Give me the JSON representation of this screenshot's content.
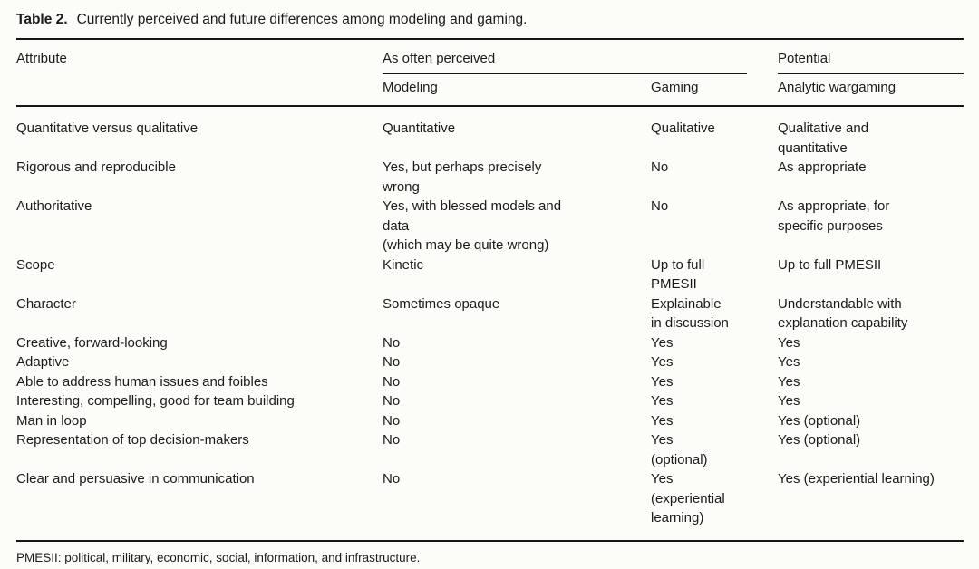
{
  "caption": {
    "label": "Table 2.",
    "text": "Currently perceived and future differences among modeling and gaming."
  },
  "table": {
    "headers": {
      "attribute": "Attribute",
      "group_perceived": "As often perceived",
      "group_potential": "Potential",
      "modeling": "Modeling",
      "gaming": "Gaming",
      "wargaming": "Analytic wargaming"
    },
    "rows": [
      {
        "attribute": "Quantitative versus qualitative",
        "modeling": "Quantitative",
        "gaming": "Qualitative",
        "wargaming": "Qualitative and\nquantitative"
      },
      {
        "attribute": "Rigorous and reproducible",
        "modeling": "Yes, but perhaps precisely\nwrong",
        "gaming": "No",
        "wargaming": "As appropriate"
      },
      {
        "attribute": "Authoritative",
        "modeling": "Yes, with blessed models and\ndata\n(which may be quite wrong)",
        "gaming": "No",
        "wargaming": "As appropriate, for\nspecific purposes"
      },
      {
        "attribute": "Scope",
        "modeling": "Kinetic",
        "gaming": "Up to full\nPMESII",
        "wargaming": "Up to full PMESII"
      },
      {
        "attribute": "Character",
        "modeling": "Sometimes opaque",
        "gaming": "Explainable\nin discussion",
        "wargaming": "Understandable with\nexplanation capability"
      },
      {
        "attribute": "Creative, forward-looking",
        "modeling": "No",
        "gaming": "Yes",
        "wargaming": "Yes"
      },
      {
        "attribute": "Adaptive",
        "modeling": "No",
        "gaming": "Yes",
        "wargaming": "Yes"
      },
      {
        "attribute": "Able to address human issues and foibles",
        "modeling": "No",
        "gaming": "Yes",
        "wargaming": "Yes"
      },
      {
        "attribute": "Interesting, compelling, good for team building",
        "modeling": "No",
        "gaming": "Yes",
        "wargaming": "Yes"
      },
      {
        "attribute": "Man in loop",
        "modeling": "No",
        "gaming": "Yes",
        "wargaming": "Yes (optional)"
      },
      {
        "attribute": "Representation of top decision-makers",
        "modeling": "No",
        "gaming": "Yes\n(optional)",
        "wargaming": "Yes (optional)"
      },
      {
        "attribute": "Clear and persuasive in communication",
        "modeling": "No",
        "gaming": "Yes\n(experiential\nlearning)",
        "wargaming": "Yes (experiential learning)"
      }
    ]
  },
  "footnote": "PMESII: political, military, economic, social, information, and infrastructure."
}
